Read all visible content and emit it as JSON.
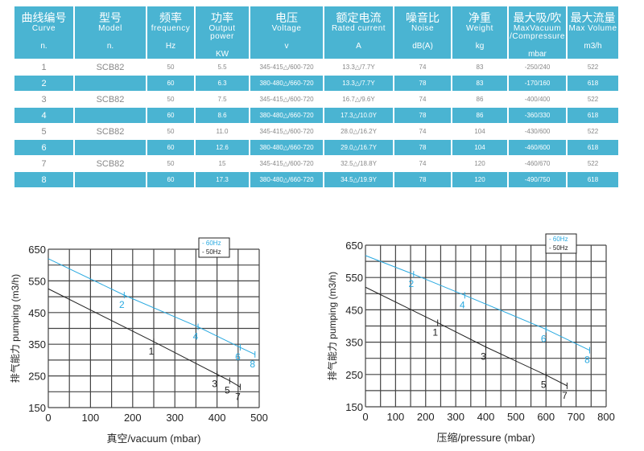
{
  "table": {
    "headers": [
      {
        "cn": "曲线编号",
        "en": "Curve",
        "unit": "n."
      },
      {
        "cn": "型号",
        "en": "Model",
        "unit": "n."
      },
      {
        "cn": "频率",
        "en": "frequency",
        "unit": "Hz"
      },
      {
        "cn": "功率",
        "en": "Output power",
        "unit": "KW"
      },
      {
        "cn": "电压",
        "en": "Voltage",
        "unit": "v"
      },
      {
        "cn": "额定电流",
        "en": "Rated current",
        "unit": "A"
      },
      {
        "cn": "噪音比",
        "en": "Noise",
        "unit": "dB(A)"
      },
      {
        "cn": "净重",
        "en": "Weight",
        "unit": "kg"
      },
      {
        "cn": "最大吸/吹",
        "en": "MaxVacuum /Compressure",
        "unit": "mbar"
      },
      {
        "cn": "最大流量",
        "en": "Max Volume",
        "unit": "m3/h"
      }
    ],
    "rows": [
      [
        "1",
        "SCB82",
        "50",
        "5.5",
        "345-415△/600-720",
        "13.3△/7.7Y",
        "74",
        "83",
        "-250/240",
        "522"
      ],
      [
        "2",
        "",
        "60",
        "6.3",
        "380-480△/660-720",
        "13.3△/7.7Y",
        "78",
        "83",
        "-170/160",
        "618"
      ],
      [
        "3",
        "SCB82",
        "50",
        "7.5",
        "345-415△/600-720",
        "16.7△/9.6Y",
        "74",
        "86",
        "-400/400",
        "522"
      ],
      [
        "4",
        "",
        "60",
        "8.6",
        "380-480△/660-720",
        "17.3△/10.0Y",
        "78",
        "86",
        "-360/330",
        "618"
      ],
      [
        "5",
        "SCB82",
        "50",
        "11.0",
        "345-415△/600-720",
        "28.0△/16.2Y",
        "74",
        "104",
        "-430/600",
        "522"
      ],
      [
        "6",
        "",
        "60",
        "12.6",
        "380-480△/660-720",
        "29.0△/16.7Y",
        "78",
        "104",
        "-460/600",
        "618"
      ],
      [
        "7",
        "SCB82",
        "50",
        "15",
        "345-415△/600-720",
        "32.5△/18.8Y",
        "74",
        "120",
        "-460/670",
        "522"
      ],
      [
        "8",
        "",
        "60",
        "17.3",
        "380-480△/660-720",
        "34.5△/19.9Y",
        "78",
        "120",
        "-490/750",
        "618"
      ]
    ]
  },
  "colors": {
    "hz60": "#29a9e0",
    "hz50": "#222222",
    "header": "#4ab4d2"
  },
  "chart_data": [
    {
      "type": "line",
      "xlabel": "真空/vacuum (mbar)",
      "ylabel": "排气能力 pumping (m3/h)",
      "xlim": [
        0,
        500
      ],
      "ylim": [
        150,
        650
      ],
      "xticks": [
        0,
        100,
        200,
        300,
        400,
        500
      ],
      "yticks": [
        150,
        250,
        350,
        450,
        550,
        650
      ],
      "grid": true,
      "legend": "top-right",
      "series": [
        {
          "name": "- 60Hz",
          "color": "#29a9e0",
          "points": [
            [
              0,
              620
            ],
            [
              180,
              505
            ],
            [
              355,
              405
            ],
            [
              455,
              340
            ],
            [
              490,
              318
            ]
          ],
          "labels": [
            "",
            "2",
            "4",
            "6",
            "8"
          ]
        },
        {
          "name": "- 50Hz",
          "color": "#222222",
          "points": [
            [
              0,
              525
            ],
            [
              250,
              358
            ],
            [
              400,
              255
            ],
            [
              430,
              235
            ],
            [
              455,
              215
            ]
          ],
          "labels": [
            "",
            "1",
            "3",
            "5",
            "7"
          ]
        }
      ]
    },
    {
      "type": "line",
      "xlabel": "压缩/pressure (mbar)",
      "ylabel": "排气能力 pumping (m3/h)",
      "xlim": [
        0,
        800
      ],
      "ylim": [
        150,
        650
      ],
      "xticks": [
        0,
        100,
        200,
        300,
        400,
        500,
        600,
        700,
        800
      ],
      "yticks": [
        150,
        250,
        350,
        450,
        550,
        650
      ],
      "grid": true,
      "legend": "top-right",
      "series": [
        {
          "name": "- 60Hz",
          "color": "#29a9e0",
          "points": [
            [
              0,
              618
            ],
            [
              160,
              560
            ],
            [
              330,
              495
            ],
            [
              600,
              390
            ],
            [
              745,
              325
            ]
          ],
          "labels": [
            "",
            "2",
            "4",
            "6",
            "8"
          ]
        },
        {
          "name": "- 50Hz",
          "color": "#222222",
          "points": [
            [
              0,
              520
            ],
            [
              240,
              410
            ],
            [
              400,
              335
            ],
            [
              600,
              248
            ],
            [
              670,
              215
            ]
          ],
          "labels": [
            "",
            "1",
            "3",
            "5",
            "7"
          ]
        }
      ]
    }
  ]
}
